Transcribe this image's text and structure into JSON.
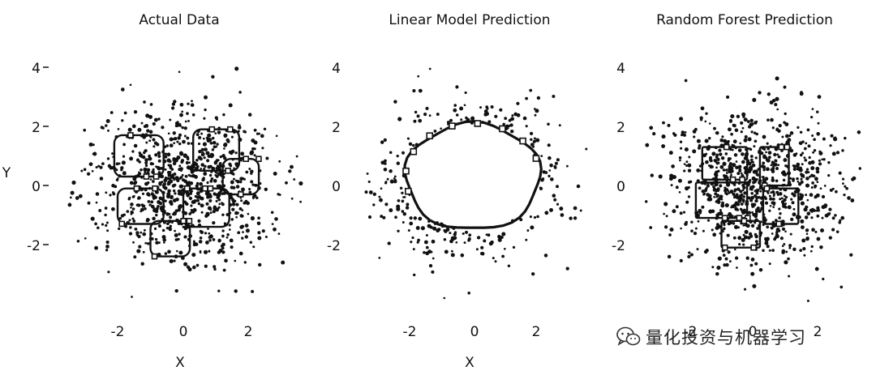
{
  "watermark": {
    "text": "量化投资与机器学习",
    "icon": "wechat-icon"
  },
  "chart_data": [
    {
      "type": "scatter",
      "title": "Actual Data",
      "xlabel": "X",
      "ylabel": "Y",
      "xlim": [
        -3.7,
        3.7
      ],
      "ylim": [
        -4.2,
        4.4
      ],
      "xticks": [
        "-2",
        "0",
        "2"
      ],
      "yticks": [
        "4",
        "2",
        "0",
        "-2"
      ],
      "point_color": "#111111",
      "overlay": "blobs",
      "region_boxes": [
        {
          "x0": -2.1,
          "y0": 0.3,
          "x1": -0.6,
          "y1": 1.7
        },
        {
          "x0": 0.3,
          "y0": 0.5,
          "x1": 1.7,
          "y1": 1.9
        },
        {
          "x0": 1.2,
          "y0": -0.3,
          "x1": 2.3,
          "y1": 0.9
        },
        {
          "x0": -2.0,
          "y0": -1.3,
          "x1": -0.6,
          "y1": -0.1
        },
        {
          "x0": 0.0,
          "y0": -1.4,
          "x1": 1.4,
          "y1": -0.1
        },
        {
          "x0": -1.0,
          "y0": -2.4,
          "x1": 0.2,
          "y1": -1.2
        }
      ]
    },
    {
      "type": "scatter",
      "title": "Linear Model Prediction",
      "xlabel": "X",
      "ylabel": "",
      "xlim": [
        -3.7,
        3.7
      ],
      "ylim": [
        -4.2,
        4.4
      ],
      "xticks": [
        "-2",
        "0",
        "2"
      ],
      "yticks": [
        "4",
        "2",
        "0",
        "-2"
      ],
      "point_color": "#111111",
      "overlay": "ring",
      "clear_region": {
        "cx": 0.0,
        "cy": 0.3,
        "rx": 2.1,
        "ry": 1.8
      }
    },
    {
      "type": "scatter",
      "title": "Random Forest Prediction",
      "xlabel": "",
      "ylabel": "",
      "xlim": [
        -3.7,
        3.7
      ],
      "ylim": [
        -4.2,
        4.4
      ],
      "xticks": [
        "-2",
        "0",
        "2"
      ],
      "yticks": [
        "4",
        "2",
        "0",
        "-2"
      ],
      "point_color": "#111111",
      "overlay": "grid",
      "region_boxes": [
        {
          "x0": -1.6,
          "y0": 0.2,
          "x1": -0.2,
          "y1": 1.3
        },
        {
          "x0": 0.2,
          "y0": 0.0,
          "x1": 1.1,
          "y1": 1.3
        },
        {
          "x0": -1.8,
          "y0": -1.1,
          "x1": -0.2,
          "y1": 0.1
        },
        {
          "x0": 0.3,
          "y0": -1.3,
          "x1": 1.4,
          "y1": -0.1
        },
        {
          "x0": -1.0,
          "y0": -2.1,
          "x1": 0.2,
          "y1": -1.2
        }
      ]
    }
  ]
}
